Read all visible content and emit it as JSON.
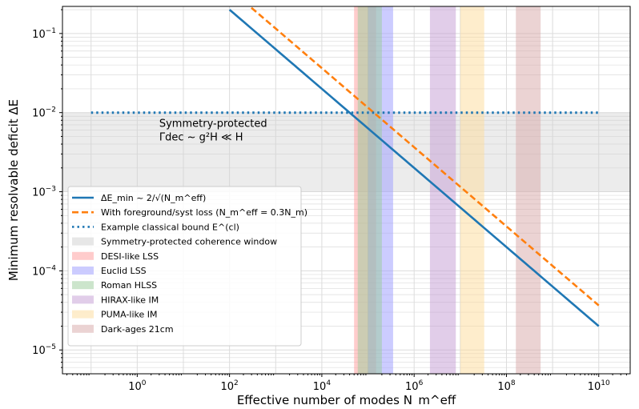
{
  "chart_data": {
    "type": "line",
    "xlabel": "Effective number of modes N_m^eff",
    "ylabel": "Minimum resolvable deficit ΔE",
    "xscale": "log",
    "yscale": "log",
    "xlim": [
      0.024,
      48000000000.0
    ],
    "ylim": [
      5e-06,
      0.22
    ],
    "x_ticks": [
      "10^0",
      "10^2",
      "10^4",
      "10^6",
      "10^8",
      "10^10"
    ],
    "y_ticks": [
      "10^-5",
      "10^-4",
      "10^-3",
      "10^-2",
      "10^-1"
    ],
    "grid": "major and minor",
    "legend_placement": "lower-left",
    "series": [
      {
        "name": "ΔE_min ~ 2/√(N_m^eff)",
        "style": "solid",
        "color": "#1f77b4",
        "formula": "2/sqrt(N)",
        "x_range": [
          100,
          10000000000.0
        ]
      },
      {
        "name": "With foreground/syst loss (N_m^eff = 0.3N_m)",
        "style": "dashed",
        "color": "#ff7f0e",
        "formula": "2/sqrt(0.3N)",
        "x_range": [
          100,
          10000000000.0
        ]
      },
      {
        "name": "Example classical bound E^(cl)",
        "style": "dotted",
        "color": "#1f77b4",
        "y": 0.01,
        "x_range": [
          0.1,
          10000000000.0
        ]
      }
    ],
    "regions": [
      {
        "name": "Symmetry-protected coherence window",
        "axis": "y",
        "range": [
          0.001,
          0.01
        ],
        "color": "#d0d0d0"
      },
      {
        "name": "DESI-like LSS",
        "axis": "x",
        "range": [
          50000.0,
          150000.0
        ],
        "color": "#ff9999"
      },
      {
        "name": "Euclid LSS",
        "axis": "x",
        "range": [
          100000.0,
          350000.0
        ],
        "color": "#9999ff"
      },
      {
        "name": "Roman HLSS",
        "axis": "x",
        "range": [
          60000.0,
          200000.0
        ],
        "color": "#99cc99"
      },
      {
        "name": "HIRAX-like IM",
        "axis": "x",
        "range": [
          2200000.0,
          8000000.0
        ],
        "color": "#c39bd3"
      },
      {
        "name": "PUMA-like IM",
        "axis": "x",
        "range": [
          10000000.0,
          33000000.0
        ],
        "color": "#fddc9a"
      },
      {
        "name": "Dark-ages 21cm",
        "axis": "x",
        "range": [
          160000000.0,
          550000000.0
        ],
        "color": "#d8a8a8"
      }
    ],
    "annotation": {
      "line1": "Symmetry-protected",
      "line2": "Γdec ~ g²H ≪ H",
      "x": 3,
      "y": 0.005
    }
  }
}
